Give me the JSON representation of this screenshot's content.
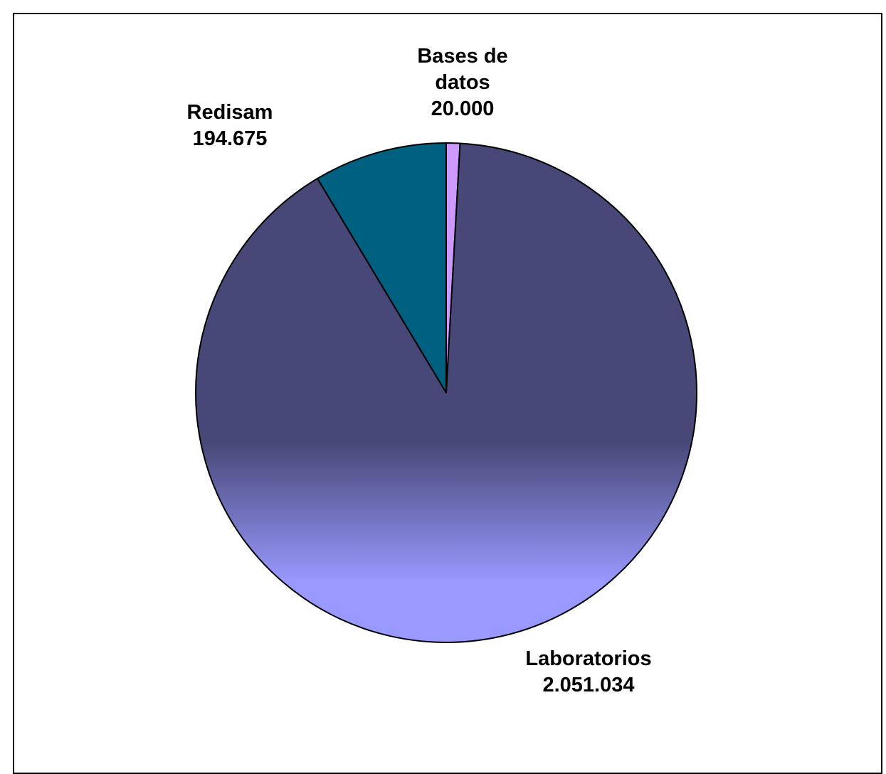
{
  "chart_data": {
    "type": "pie",
    "title": "",
    "slices": [
      {
        "label_lines": [
          "Bases de",
          "datos"
        ],
        "value_label": "20.000",
        "value": 20000,
        "color": "#cc99ff"
      },
      {
        "label_lines": [
          "Laboratorios"
        ],
        "value_label": "2.051.034",
        "value": 2051034,
        "color": "#484878",
        "gradient_end_color": "#9999ff"
      },
      {
        "label_lines": [
          "Redisam"
        ],
        "value_label": "194.675",
        "value": 194675,
        "color": "#006080"
      }
    ],
    "legend": "none",
    "slice_outline_color": "#000000"
  }
}
